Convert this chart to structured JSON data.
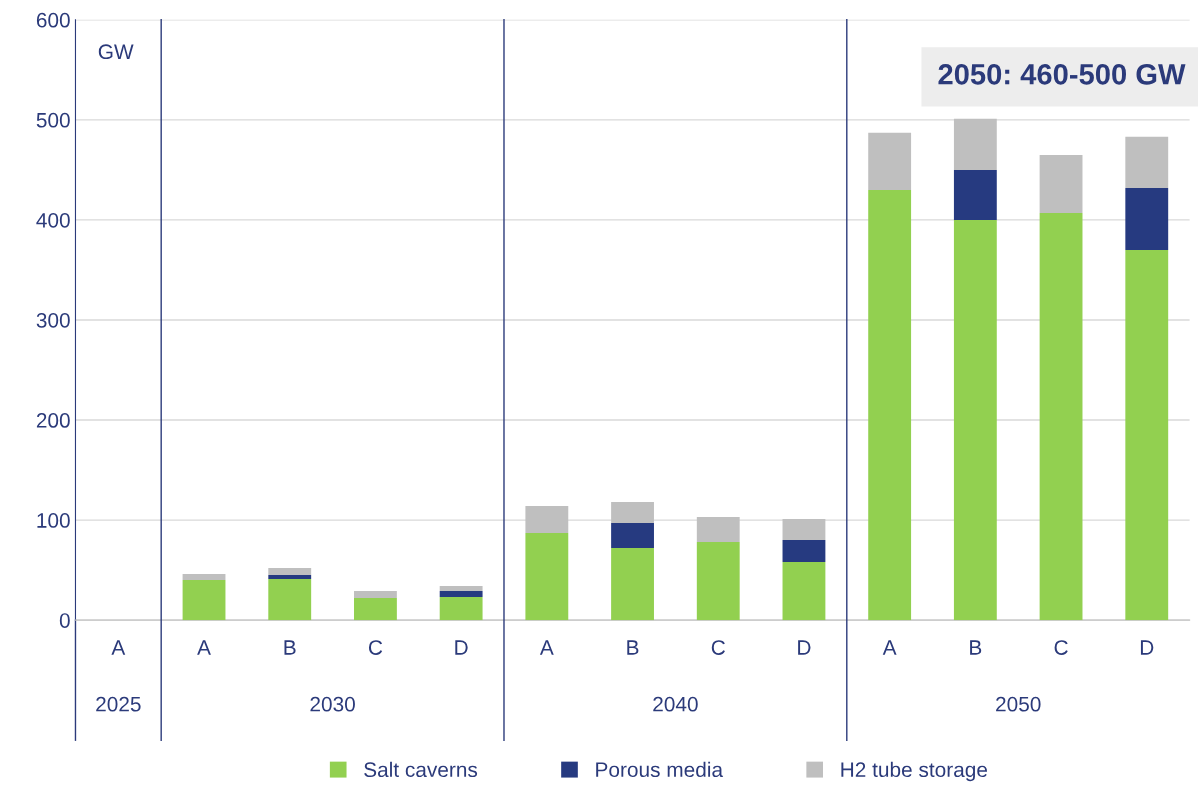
{
  "chart_data": {
    "type": "bar",
    "stacked": true,
    "categories": [
      "A",
      "A",
      "B",
      "C",
      "D",
      "A",
      "B",
      "C",
      "D",
      "A",
      "B",
      "C",
      "D"
    ],
    "series": [
      {
        "name": "Salt caverns",
        "color": "#92d050",
        "values": [
          0,
          40,
          41,
          22,
          23,
          87,
          72,
          78,
          58,
          430,
          400,
          407,
          370
        ]
      },
      {
        "name": "Porous media",
        "color": "#263a80",
        "values": [
          0,
          0,
          4,
          0,
          6,
          0,
          25,
          0,
          22,
          0,
          50,
          0,
          62
        ]
      },
      {
        "name": "H2 tube storage",
        "color": "#bfbfbf",
        "values": [
          0,
          6,
          7,
          7,
          5,
          27,
          21,
          25,
          21,
          57,
          51,
          58,
          51
        ]
      }
    ],
    "ylabel": "GW",
    "ylim": [
      0,
      600
    ],
    "yticks": [
      0,
      100,
      200,
      300,
      400,
      500,
      600
    ],
    "annotations": [
      "2025",
      "2030",
      "2040",
      "2050",
      "2050: 460-500 GW"
    ],
    "grid": "y",
    "legend": "bottom"
  }
}
